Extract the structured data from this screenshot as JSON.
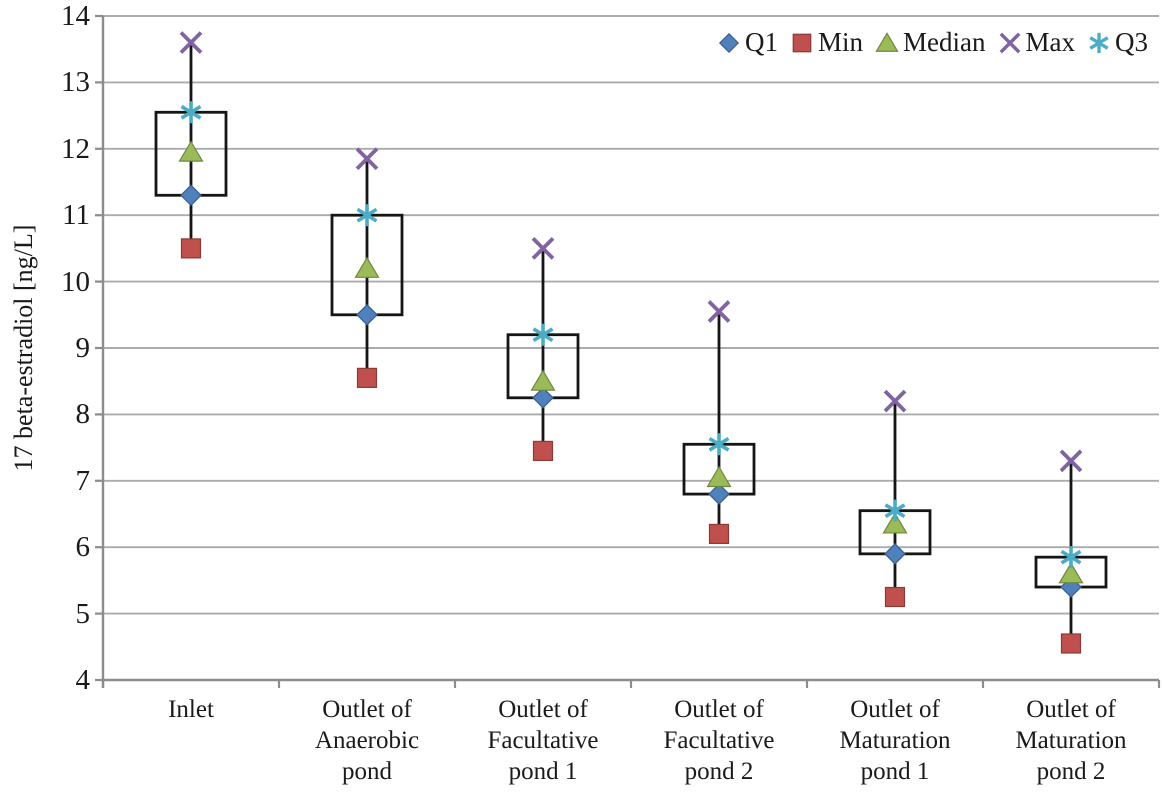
{
  "chart_data": {
    "type": "scatter",
    "subtype": "box-whisker-quartile-plot",
    "title": "",
    "ylabel": "17 beta-estradiol [ng/L]",
    "xlabel": "",
    "ylim": [
      4,
      14
    ],
    "ytick_step": 1,
    "grid": true,
    "legend_position": "top-right-inside",
    "categories": [
      "Inlet",
      "Outlet of\nAnaerobic\npond",
      "Outlet of\nFacultative\npond 1",
      "Outlet of\nFacultative\npond 2",
      "Outlet of\nMaturation\npond 1",
      "Outlet of\nMaturation\npond 2"
    ],
    "series": [
      {
        "name": "Q1",
        "marker": "diamond",
        "color": "#4F81BD",
        "values": [
          11.3,
          9.5,
          8.25,
          6.8,
          5.9,
          5.4
        ]
      },
      {
        "name": "Min",
        "marker": "square",
        "color": "#C0504D",
        "values": [
          10.5,
          8.55,
          7.45,
          6.2,
          5.25,
          4.55
        ]
      },
      {
        "name": "Median",
        "marker": "triangle",
        "color": "#9BBB59",
        "values": [
          11.95,
          10.2,
          8.5,
          7.05,
          6.35,
          5.6
        ]
      },
      {
        "name": "Max",
        "marker": "x",
        "color": "#8064A2",
        "values": [
          13.6,
          11.85,
          10.5,
          9.55,
          8.2,
          7.3
        ]
      },
      {
        "name": "Q3",
        "marker": "asterisk",
        "color": "#4BACC6",
        "values": [
          12.55,
          11.0,
          9.2,
          7.55,
          6.55,
          5.85
        ]
      }
    ],
    "box": {
      "lower_series": "Q1",
      "upper_series": "Q3"
    },
    "whisker": {
      "lower_series": "Min",
      "upper_series": "Max"
    },
    "colors": {
      "box_stroke": "#151515",
      "whisker_stroke": "#151515",
      "gridline": "#ABABAB",
      "axis": "#8C8C8C",
      "text": "#1A1A1A",
      "background": "#FFFFFF"
    }
  }
}
